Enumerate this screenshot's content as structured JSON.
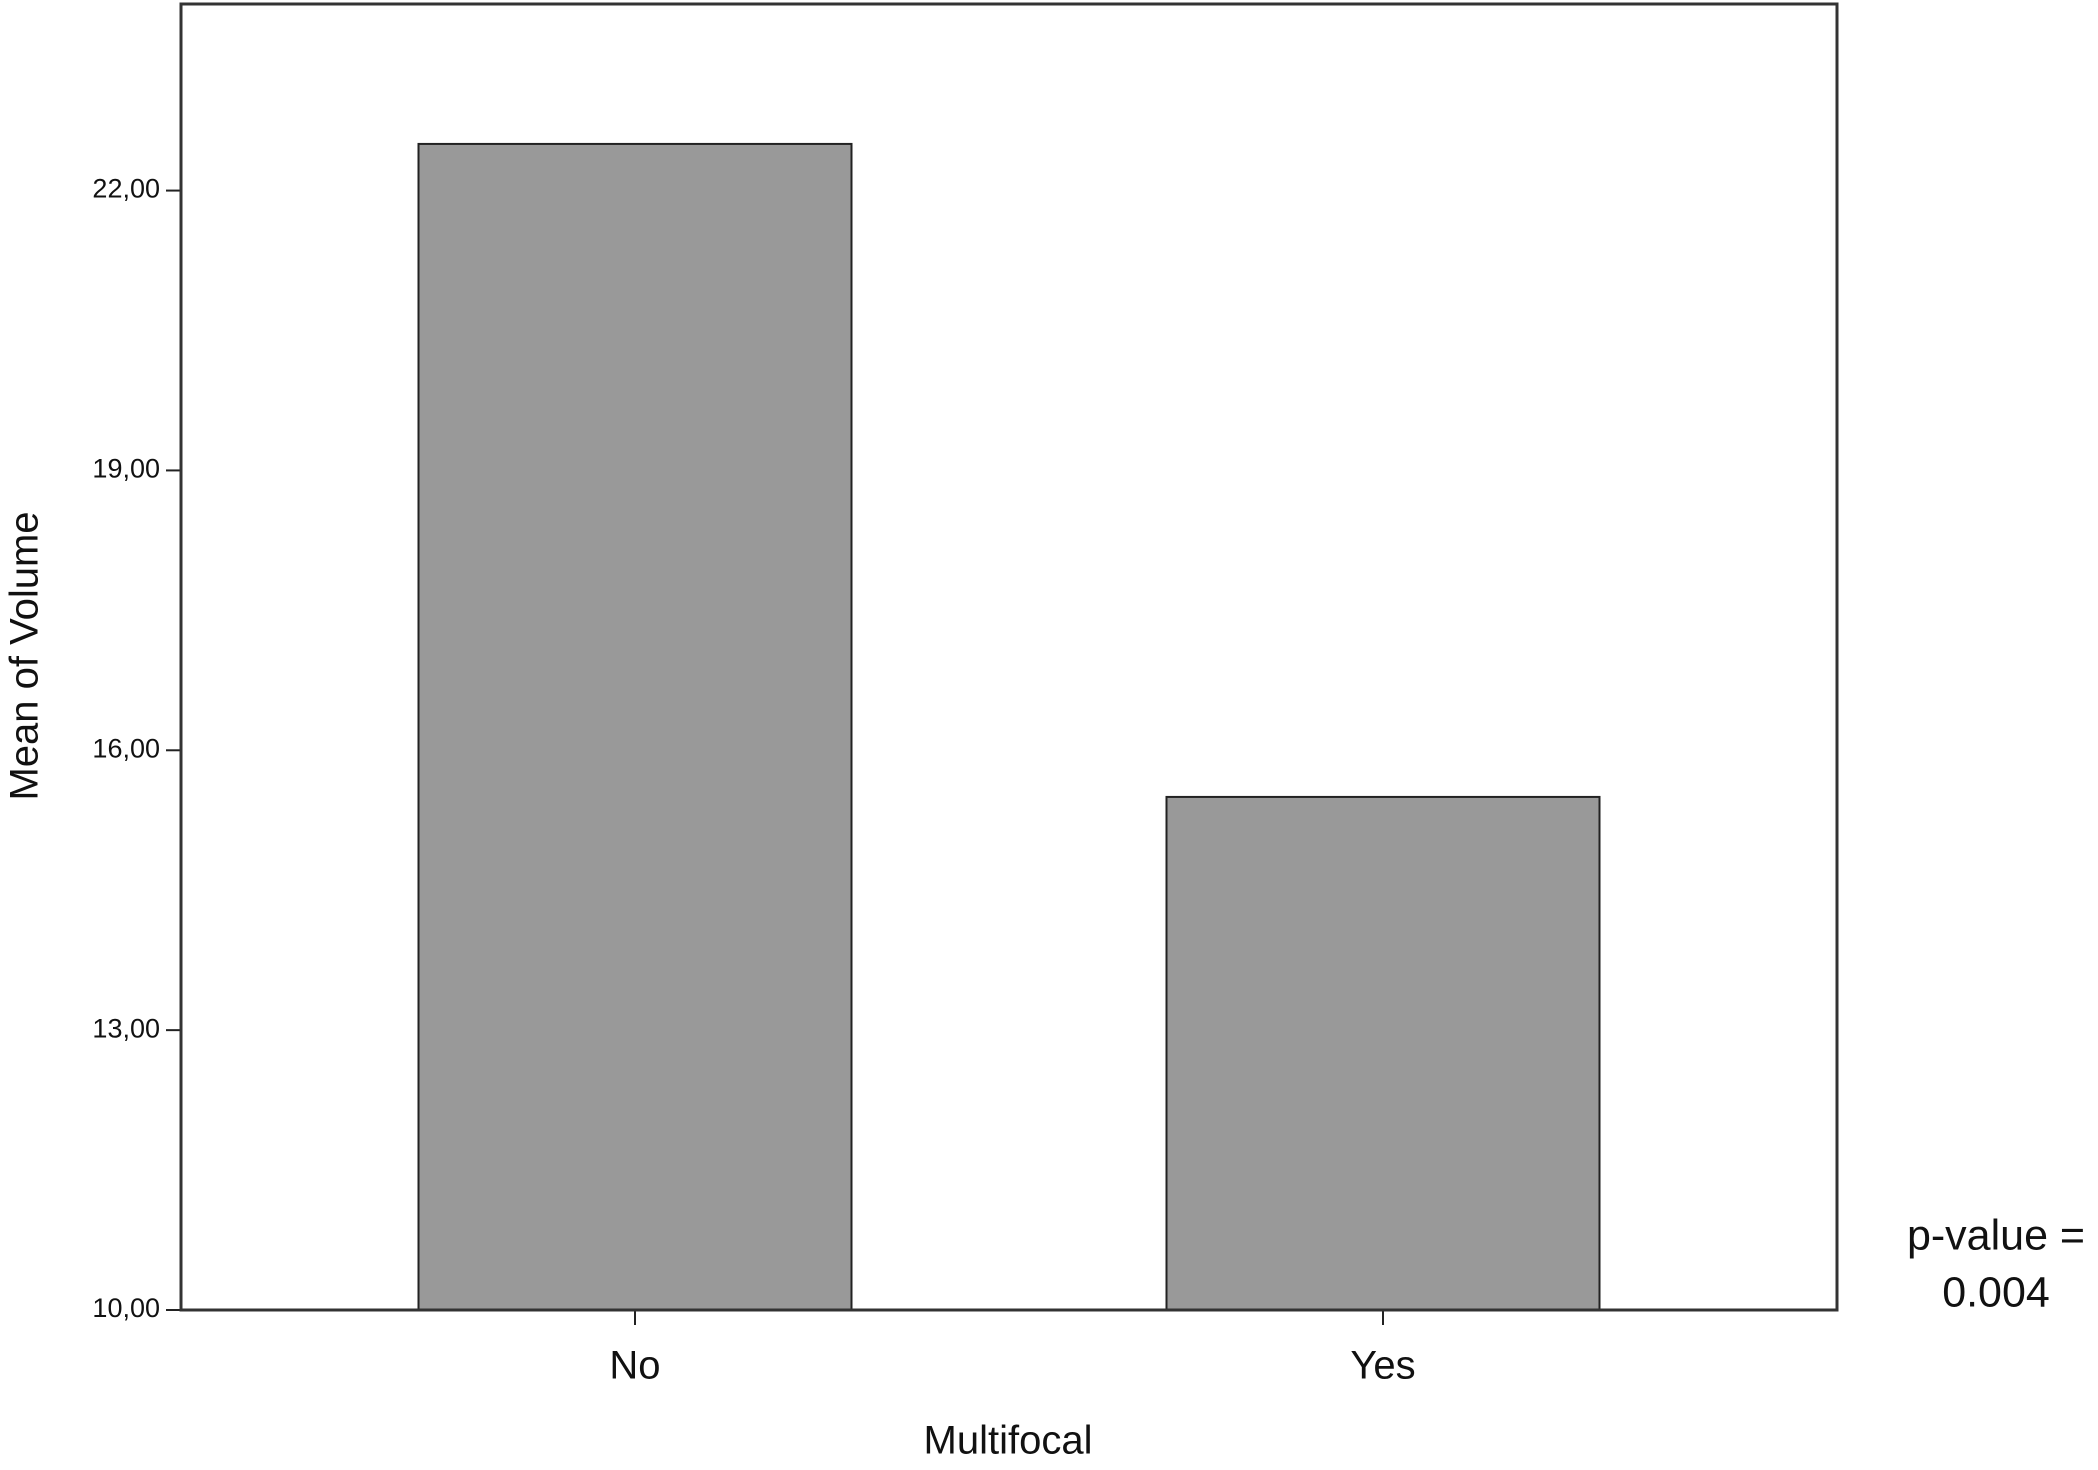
{
  "chart_data": {
    "type": "bar",
    "x_label": "Multifocal",
    "y_label": "Mean of Volume",
    "categories": [
      "No",
      "Yes"
    ],
    "values": [
      22.5,
      15.5
    ],
    "color": "#999999",
    "ylim": [
      10,
      24
    ],
    "yticks": [
      {
        "value": 10,
        "label": "10,00"
      },
      {
        "value": 13,
        "label": "13,00"
      },
      {
        "value": 16,
        "label": "16,00"
      },
      {
        "value": 19,
        "label": "19,00"
      },
      {
        "value": 22,
        "label": "22,00"
      }
    ],
    "grid": false,
    "annotation": [
      "p-value =",
      "0.004"
    ]
  }
}
